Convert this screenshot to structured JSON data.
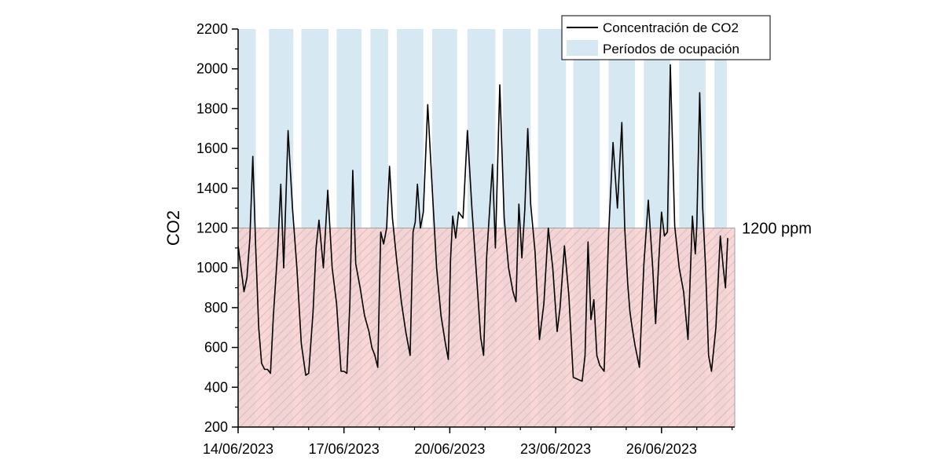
{
  "chart_data": {
    "type": "line",
    "title": "",
    "xlabel": "",
    "ylabel": "CO2",
    "ylim": [
      200,
      2200
    ],
    "xlim": [
      "2023-06-14T00:00",
      "2023-06-28T00:00"
    ],
    "yticks": [
      200,
      400,
      600,
      800,
      1000,
      1200,
      1400,
      1600,
      1800,
      2000,
      2200
    ],
    "xticks": [
      "2023-06-14",
      "2023-06-17",
      "2023-06-20",
      "2023-06-23",
      "2023-06-26"
    ],
    "xtick_labels": [
      "14/06/2023",
      "17/06/2023",
      "20/06/2023",
      "23/06/2023",
      "26/06/2023"
    ],
    "grid": false,
    "legend": {
      "placement": "top-right",
      "entries": [
        "Concentración de CO2",
        "Períodos de ocupación"
      ]
    },
    "threshold": {
      "value": 1200,
      "label": "1200 ppm"
    },
    "colors": {
      "line": "#000000",
      "occupancy": "#d6e8f2",
      "threshold_band": "#f8d0d0",
      "hatch": "#c9a8ae"
    },
    "occupancy_periods": [
      [
        "2023-06-14T00:00",
        "2023-06-14T12:00"
      ],
      [
        "2023-06-14T21:00",
        "2023-06-15T13:30"
      ],
      [
        "2023-06-15T19:00",
        "2023-06-16T13:30"
      ],
      [
        "2023-06-16T19:00",
        "2023-06-17T12:00"
      ],
      [
        "2023-06-17T18:00",
        "2023-06-18T06:00"
      ],
      [
        "2023-06-18T12:00",
        "2023-06-19T06:00"
      ],
      [
        "2023-06-19T12:00",
        "2023-06-20T05:00"
      ],
      [
        "2023-06-20T12:00",
        "2023-06-21T07:00"
      ],
      [
        "2023-06-21T12:00",
        "2023-06-22T07:00"
      ],
      [
        "2023-06-22T12:00",
        "2023-06-23T07:00"
      ],
      [
        "2023-06-23T12:00",
        "2023-06-24T06:00"
      ],
      [
        "2023-06-24T12:00",
        "2023-06-25T06:00"
      ],
      [
        "2023-06-25T12:00",
        "2023-06-26T06:00"
      ],
      [
        "2023-06-26T12:00",
        "2023-06-27T06:00"
      ],
      [
        "2023-06-27T12:00",
        "2023-06-27T20:30"
      ]
    ],
    "series": [
      {
        "name": "Concentración de CO2",
        "x": [
          "2023-06-14T00:00",
          "2023-06-14T02:00",
          "2023-06-14T04:00",
          "2023-06-14T06:00",
          "2023-06-14T08:00",
          "2023-06-14T10:00",
          "2023-06-14T12:00",
          "2023-06-14T14:00",
          "2023-06-14T16:00",
          "2023-06-14T18:00",
          "2023-06-14T20:00",
          "2023-06-14T22:00",
          "2023-06-15T00:00",
          "2023-06-15T03:00",
          "2023-06-15T05:00",
          "2023-06-15T07:00",
          "2023-06-15T10:00",
          "2023-06-15T13:00",
          "2023-06-15T16:00",
          "2023-06-15T19:00",
          "2023-06-15T22:00",
          "2023-06-16T00:00",
          "2023-06-16T03:00",
          "2023-06-16T05:00",
          "2023-06-16T07:00",
          "2023-06-16T10:00",
          "2023-06-16T13:00",
          "2023-06-16T16:00",
          "2023-06-16T19:00",
          "2023-06-16T22:00",
          "2023-06-17T00:00",
          "2023-06-17T02:00",
          "2023-06-17T04:00",
          "2023-06-17T06:00",
          "2023-06-17T08:00",
          "2023-06-17T11:00",
          "2023-06-17T14:00",
          "2023-06-17T17:00",
          "2023-06-17T19:00",
          "2023-06-17T21:00",
          "2023-06-17T23:00",
          "2023-06-18T01:00",
          "2023-06-18T03:00",
          "2023-06-18T05:00",
          "2023-06-18T07:00",
          "2023-06-18T09:00",
          "2023-06-18T12:00",
          "2023-06-18T15:00",
          "2023-06-18T18:00",
          "2023-06-18T21:00",
          "2023-06-18T23:00",
          "2023-06-19T00:30",
          "2023-06-19T02:00",
          "2023-06-19T04:00",
          "2023-06-19T06:00",
          "2023-06-19T09:00",
          "2023-06-19T12:00",
          "2023-06-19T15:00",
          "2023-06-19T18:00",
          "2023-06-19T21:00",
          "2023-06-19T23:00",
          "2023-06-20T00:30",
          "2023-06-20T02:00",
          "2023-06-20T04:00",
          "2023-06-20T06:00",
          "2023-06-20T09:00",
          "2023-06-20T12:00",
          "2023-06-20T15:00",
          "2023-06-20T18:00",
          "2023-06-20T21:00",
          "2023-06-20T23:00",
          "2023-06-21T01:00",
          "2023-06-21T03:00",
          "2023-06-21T05:00",
          "2023-06-21T07:00",
          "2023-06-21T10:00",
          "2023-06-21T13:00",
          "2023-06-21T16:00",
          "2023-06-21T19:00",
          "2023-06-21T21:00",
          "2023-06-21T23:00",
          "2023-06-22T01:00",
          "2023-06-22T03:00",
          "2023-06-22T05:00",
          "2023-06-22T07:00",
          "2023-06-22T10:00",
          "2023-06-22T13:00",
          "2023-06-22T16:00",
          "2023-06-22T19:00",
          "2023-06-22T22:00",
          "2023-06-23T01:00",
          "2023-06-23T03:00",
          "2023-06-23T06:00",
          "2023-06-23T09:00",
          "2023-06-23T12:00",
          "2023-06-23T15:00",
          "2023-06-23T18:00",
          "2023-06-23T20:00",
          "2023-06-23T22:00",
          "2023-06-24T00:00",
          "2023-06-24T02:00",
          "2023-06-24T04:00",
          "2023-06-24T06:00",
          "2023-06-24T09:00",
          "2023-06-24T12:00",
          "2023-06-24T15:00",
          "2023-06-24T18:00",
          "2023-06-24T21:00",
          "2023-06-24T23:00",
          "2023-06-25T01:00",
          "2023-06-25T02:30",
          "2023-06-25T04:00",
          "2023-06-25T06:00",
          "2023-06-25T09:00",
          "2023-06-25T12:00",
          "2023-06-25T15:00",
          "2023-06-25T18:00",
          "2023-06-25T20:00",
          "2023-06-25T22:00",
          "2023-06-26T00:00",
          "2023-06-26T02:00",
          "2023-06-26T04:00",
          "2023-06-26T06:00",
          "2023-06-26T09:00",
          "2023-06-26T12:00",
          "2023-06-26T15:00",
          "2023-06-26T18:00",
          "2023-06-26T21:00",
          "2023-06-26T23:00",
          "2023-06-27T00:00",
          "2023-06-27T02:00",
          "2023-06-27T04:00",
          "2023-06-27T06:00",
          "2023-06-27T08:00",
          "2023-06-27T10:00",
          "2023-06-27T13:00",
          "2023-06-27T16:00",
          "2023-06-27T18:00",
          "2023-06-27T19:30",
          "2023-06-27T21:00"
        ],
        "values": [
          1110,
          1000,
          880,
          950,
          1150,
          1560,
          1100,
          700,
          520,
          490,
          490,
          470,
          760,
          1100,
          1420,
          1000,
          1690,
          1300,
          1000,
          620,
          460,
          470,
          780,
          1100,
          1240,
          1000,
          1390,
          1000,
          820,
          480,
          480,
          470,
          820,
          1490,
          1020,
          900,
          760,
          680,
          600,
          560,
          500,
          1180,
          1120,
          1200,
          1510,
          1250,
          1030,
          830,
          680,
          560,
          1180,
          1230,
          1420,
          1200,
          1280,
          1820,
          1400,
          1000,
          760,
          620,
          540,
          1040,
          1260,
          1150,
          1280,
          1250,
          1690,
          1300,
          980,
          650,
          560,
          1050,
          1280,
          1520,
          1100,
          1920,
          1250,
          1000,
          880,
          830,
          1320,
          1050,
          1290,
          1700,
          1320,
          1080,
          640,
          820,
          1200,
          1000,
          680,
          800,
          1110,
          860,
          450,
          440,
          430,
          560,
          1130,
          740,
          840,
          560,
          510,
          480,
          1170,
          1630,
          1300,
          1730,
          1200,
          920,
          780,
          700,
          610,
          500,
          1020,
          1340,
          1000,
          720,
          1020,
          1280,
          1160,
          1180,
          2020,
          1210,
          1000,
          880,
          640,
          1260,
          1070,
          1210,
          1880,
          1300,
          1000,
          560,
          480,
          700,
          1160,
          1000,
          900,
          1150
        ]
      }
    ]
  }
}
